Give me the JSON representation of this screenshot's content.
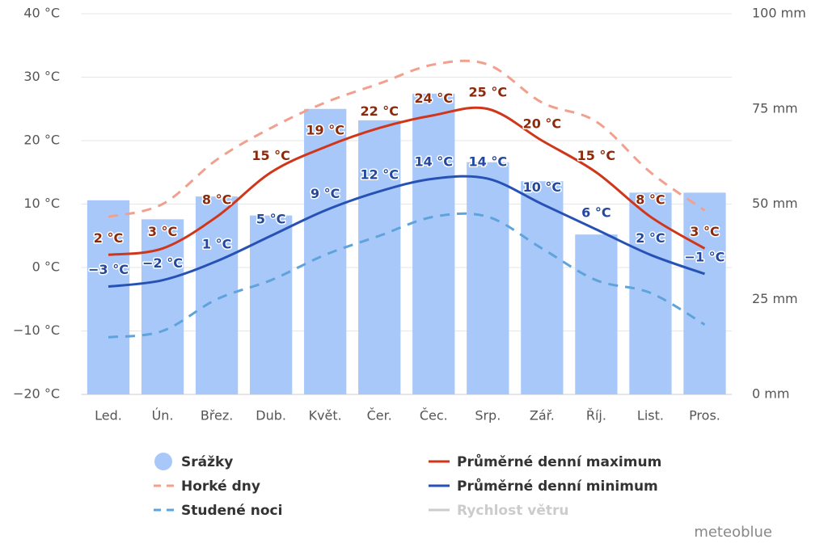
{
  "chart_data": {
    "type": "bar_line",
    "categories": [
      "Led.",
      "Ún.",
      "Břez.",
      "Dub.",
      "Květ.",
      "Čer.",
      "Čec.",
      "Srp.",
      "Zář.",
      "Říj.",
      "List.",
      "Pros."
    ],
    "ylim": [
      -20,
      40
    ],
    "yticks": [
      {
        "value": -20,
        "label": "−20 °C"
      },
      {
        "value": -10,
        "label": "−10 °C"
      },
      {
        "value": 0,
        "label": "0 °C"
      },
      {
        "value": 10,
        "label": "10 °C"
      },
      {
        "value": 20,
        "label": "20 °C"
      },
      {
        "value": 30,
        "label": "30 °C"
      },
      {
        "value": 40,
        "label": "40 °C"
      }
    ],
    "y2lim": [
      0,
      100
    ],
    "y2ticks": [
      {
        "value": 0,
        "label": "0 mm"
      },
      {
        "value": 25,
        "label": "25 mm"
      },
      {
        "value": 50,
        "label": "50 mm"
      },
      {
        "value": 75,
        "label": "75 mm"
      },
      {
        "value": 100,
        "label": "100 mm"
      }
    ],
    "grid": true,
    "series": [
      {
        "name": "Srážky",
        "type": "bar",
        "axis": "y2",
        "color": "#a9c8fa",
        "values": [
          51,
          46,
          52,
          47,
          75,
          72,
          79,
          61,
          56,
          42,
          53,
          53
        ]
      },
      {
        "name": "Horké dny",
        "type": "line",
        "dashed": true,
        "color": "#f2a08e",
        "values": [
          8,
          10,
          17,
          22,
          26,
          29,
          32,
          32,
          26,
          23,
          15,
          9
        ]
      },
      {
        "name": "Studené noci",
        "type": "line",
        "dashed": true,
        "color": "#5ea3db",
        "values": [
          -11,
          -10,
          -5,
          -2,
          2,
          5,
          8,
          8,
          3,
          -2,
          -4,
          -9
        ]
      },
      {
        "name": "Průměrné denní maximum",
        "type": "line",
        "color": "#d0361a",
        "label_color": "#8e2a0c",
        "values": [
          2,
          3,
          8,
          15,
          19,
          22,
          24,
          25,
          20,
          15,
          8,
          3
        ],
        "value_labels": [
          "2 °C",
          "3 °C",
          "8 °C",
          "15 °C",
          "19 °C",
          "22 °C",
          "24 °C",
          "25 °C",
          "20 °C",
          "15 °C",
          "8 °C",
          "3 °C"
        ]
      },
      {
        "name": "Průměrné denní minimum",
        "type": "line",
        "color": "#2752b5",
        "label_color": "#23489e",
        "values": [
          -3,
          -2,
          1,
          5,
          9,
          12,
          14,
          14,
          10,
          6,
          2,
          -1
        ],
        "value_labels": [
          "−3 °C",
          "−2 °C",
          "1 °C",
          "5 °C",
          "9 °C",
          "12 °C",
          "14 °C",
          "14 °C",
          "10 °C",
          "6 °C",
          "2 °C",
          "−1 °C"
        ]
      }
    ],
    "hidden_series": [
      {
        "name": "Rychlost větru",
        "color": "#cccccc"
      }
    ],
    "credit": "meteoblue"
  }
}
